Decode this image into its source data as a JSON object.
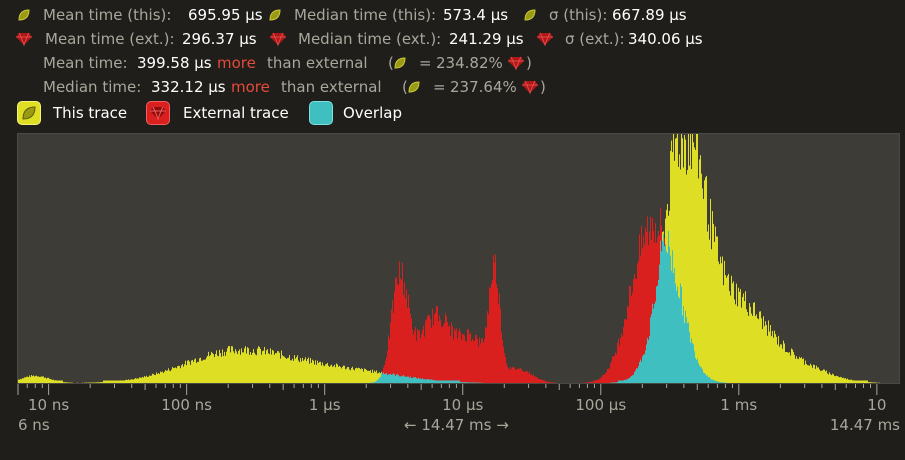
{
  "stats": {
    "mean_this": {
      "label": "Mean time (this):",
      "value": "695.95 μs"
    },
    "median_this": {
      "label": "Median time (this):",
      "value": "573.4 μs"
    },
    "sigma_this": {
      "label": "σ (this):",
      "value": "667.89 μs"
    },
    "mean_ext": {
      "label": "Mean time (ext.):",
      "value": "296.37 μs"
    },
    "median_ext": {
      "label": "Median time (ext.):",
      "value": "241.29 μs"
    },
    "sigma_ext": {
      "label": "σ (ext.):",
      "value": "340.06 μs"
    },
    "mean_diff": {
      "label": "Mean time:",
      "value": "399.58 μs",
      "more": "more",
      "than": "than external",
      "open": "(",
      "eq": "=",
      "ratio": "234.82%",
      "close": ")"
    },
    "median_diff": {
      "label": "Median time:",
      "value": "332.12 μs",
      "more": "more",
      "than": "than external",
      "open": "(",
      "eq": "=",
      "ratio": "237.64%",
      "close": ")"
    }
  },
  "legend": {
    "this": "This trace",
    "external": "External trace",
    "overlap": "Overlap"
  },
  "colors": {
    "this": "#dede24",
    "external": "#d9201f",
    "overlap": "#3fbfc0",
    "plot_bg": "#3d3c37",
    "leaf": "#9a9a14",
    "ruby": "#b01818"
  },
  "axis": {
    "range_left": "6 ns",
    "range_right": "14.47 ms",
    "span": "← 14.47 ms →"
  },
  "chart_data": {
    "type": "bar",
    "x_scale": "log",
    "xlim_ns": [
      6,
      14470000
    ],
    "tick_labels": [
      {
        "label": "10 ns",
        "ns": 10
      },
      {
        "label": "100 ns",
        "ns": 100
      },
      {
        "label": "1 μs",
        "ns": 1000
      },
      {
        "label": "10 μs",
        "ns": 10000
      },
      {
        "label": "100 μs",
        "ns": 100000
      },
      {
        "label": "1 ms",
        "ns": 1000000
      },
      {
        "label": "10",
        "ns": 10000000
      }
    ],
    "ylim": [
      0,
      1
    ],
    "series": [
      {
        "name": "This trace",
        "key": "this",
        "peaks": [
          {
            "center_ns": 8,
            "height": 0.03,
            "width_dec": 0.1
          },
          {
            "center_ns": 200,
            "height": 0.11,
            "width_dec": 0.35
          },
          {
            "center_ns": 700,
            "height": 0.06,
            "width_dec": 0.4
          },
          {
            "center_ns": 2500,
            "height": 0.02,
            "width_dec": 0.3
          },
          {
            "center_ns": 400000,
            "height": 0.98,
            "width_dec": 0.14
          },
          {
            "center_ns": 900000,
            "height": 0.35,
            "width_dec": 0.25
          },
          {
            "center_ns": 3000000,
            "height": 0.05,
            "width_dec": 0.2
          }
        ]
      },
      {
        "name": "External trace",
        "key": "external",
        "peaks": [
          {
            "center_ns": 3500,
            "height": 0.42,
            "width_dec": 0.06
          },
          {
            "center_ns": 6500,
            "height": 0.28,
            "width_dec": 0.13
          },
          {
            "center_ns": 12000,
            "height": 0.16,
            "width_dec": 0.08
          },
          {
            "center_ns": 17000,
            "height": 0.45,
            "width_dec": 0.04
          },
          {
            "center_ns": 25000,
            "height": 0.06,
            "width_dec": 0.1
          },
          {
            "center_ns": 210000,
            "height": 0.5,
            "width_dec": 0.13
          },
          {
            "center_ns": 320000,
            "height": 0.35,
            "width_dec": 0.12
          }
        ]
      }
    ]
  }
}
